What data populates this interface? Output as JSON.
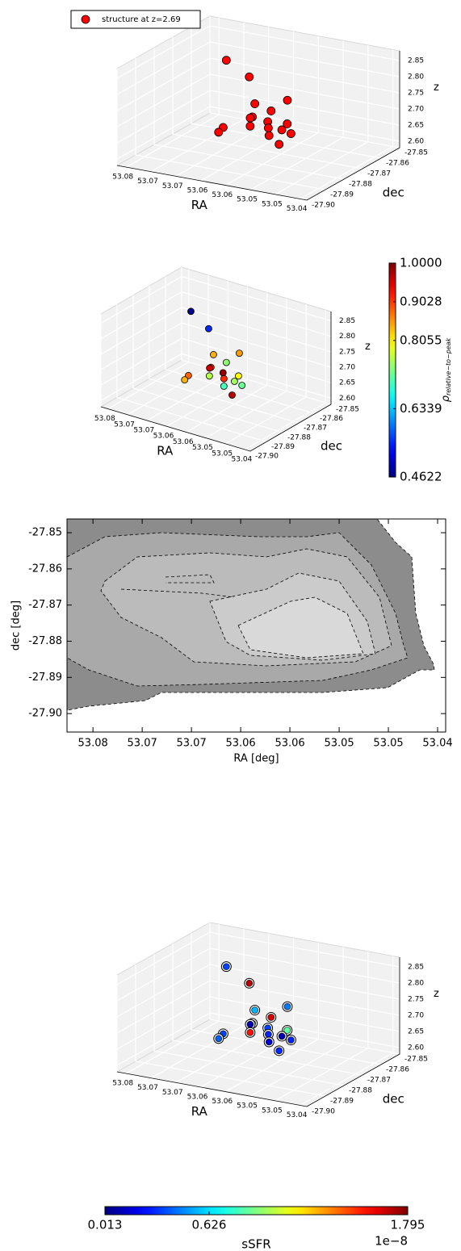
{
  "chart_data": [
    {
      "type": "scatter3d",
      "legend": "structure at z=2.69",
      "color": "#ff0000",
      "xlabel": "RA",
      "ylabel": "dec",
      "zlabel": "z",
      "x": [
        53.0685,
        53.0626,
        53.0626,
        53.0615,
        53.0628,
        53.0558,
        53.0624,
        53.0692,
        53.0698,
        53.059,
        53.0581,
        53.0542,
        53.0592,
        53.0574,
        53.0558,
        53.0546,
        53.056
      ],
      "y": [
        -27.874,
        -27.876,
        -27.873,
        -27.877,
        -27.875,
        -27.872,
        -27.876,
        -27.874,
        -27.875,
        -27.873,
        -27.877,
        -27.876,
        -27.874,
        -27.878,
        -27.875,
        -27.873,
        -27.876
      ],
      "z": [
        2.856,
        2.826,
        2.733,
        2.708,
        2.695,
        2.758,
        2.674,
        2.646,
        2.633,
        2.72,
        2.702,
        2.702,
        2.67,
        2.664,
        2.676,
        2.661,
        2.634
      ],
      "xlim": [
        53.082,
        53.04
      ],
      "ylim": [
        -27.9,
        -27.85
      ],
      "zlim": [
        2.58,
        2.88
      ],
      "xticks": [
        53.08,
        {
          "value": 53.0745,
          "label": "53.07"
        },
        {
          "value": 53.069,
          "label": "53.07"
        },
        {
          "value": 53.0635,
          "label": "53.06"
        },
        {
          "value": 53.058,
          "label": "53.06"
        },
        {
          "value": 53.0525,
          "label": "53.05"
        },
        {
          "value": 53.047,
          "label": "53.05"
        },
        {
          "value": 53.0415,
          "label": "53.04"
        }
      ],
      "yticks": [
        -27.85,
        -27.86,
        -27.87,
        -27.88,
        -27.89,
        {
          "value": -27.9,
          "label": "-27.90"
        }
      ],
      "zticks": [
        {
          "value": 2.6,
          "label": "2.60"
        },
        2.65,
        {
          "value": 2.7,
          "label": "2.70"
        },
        2.75,
        {
          "value": 2.8,
          "label": "2.80"
        },
        2.85
      ]
    },
    {
      "type": "scatter3d",
      "xlabel": "RA",
      "ylabel": "dec",
      "zlabel": "z",
      "x": [
        53.0685,
        53.0626,
        53.0626,
        53.0615,
        53.0628,
        53.0558,
        53.0624,
        53.0692,
        53.0698,
        53.059,
        53.0581,
        53.0542,
        53.0592,
        53.0574,
        53.0558,
        53.0546,
        53.056
      ],
      "y": [
        -27.874,
        -27.876,
        -27.873,
        -27.877,
        -27.875,
        -27.872,
        -27.876,
        -27.874,
        -27.875,
        -27.873,
        -27.877,
        -27.876,
        -27.874,
        -27.878,
        -27.875,
        -27.873,
        -27.876
      ],
      "z": [
        2.856,
        2.826,
        2.733,
        2.708,
        2.695,
        2.758,
        2.674,
        2.646,
        2.633,
        2.72,
        2.702,
        2.702,
        2.67,
        2.664,
        2.676,
        2.661,
        2.634
      ],
      "c": [
        0.47,
        0.55,
        0.84,
        0.91,
        0.96,
        0.85,
        0.76,
        0.88,
        0.84,
        0.74,
        0.99,
        0.8,
        0.91,
        0.7,
        0.75,
        0.72,
        0.97
      ],
      "xlim": [
        53.082,
        53.04
      ],
      "ylim": [
        -27.9,
        -27.85
      ],
      "zlim": [
        2.58,
        2.88
      ],
      "xticks": [
        53.08,
        {
          "value": 53.0745,
          "label": "53.07"
        },
        {
          "value": 53.069,
          "label": "53.07"
        },
        {
          "value": 53.0635,
          "label": "53.06"
        },
        {
          "value": 53.058,
          "label": "53.06"
        },
        {
          "value": 53.0525,
          "label": "53.05"
        },
        {
          "value": 53.047,
          "label": "53.05"
        },
        {
          "value": 53.0415,
          "label": "53.04"
        }
      ],
      "yticks": [
        -27.85,
        -27.86,
        -27.87,
        -27.88,
        -27.89,
        {
          "value": -27.9,
          "label": "-27.90"
        }
      ],
      "zticks": [
        {
          "value": 2.6,
          "label": "2.60"
        },
        2.65,
        {
          "value": 2.7,
          "label": "2.70"
        },
        2.75,
        {
          "value": 2.8,
          "label": "2.80"
        },
        2.85
      ],
      "colorbar": {
        "orientation": "vertical",
        "cmap": "jet",
        "symbol": "ρ",
        "subscript": "relative−to−peak",
        "lim": [
          0.4622,
          1
        ],
        "ticks": [
          0.4622,
          0.6339,
          0.8055,
          0.9028,
          {
            "value": 1,
            "label": "1.0000"
          }
        ]
      }
    },
    {
      "type": "contour",
      "xlabel": "RA [deg]",
      "ylabel": "dec [deg]",
      "xlim": [
        53.0829,
        53.0406
      ],
      "ylim": [
        -27.9051,
        -27.8462
      ],
      "xticks": [
        53.08,
        {
          "value": 53.0745,
          "label": "53.07"
        },
        {
          "value": 53.069,
          "label": "53.07"
        },
        {
          "value": 53.0635,
          "label": "53.06"
        },
        {
          "value": 53.058,
          "label": "53.06"
        },
        {
          "value": 53.0525,
          "label": "53.05"
        },
        {
          "value": 53.047,
          "label": "53.05"
        },
        {
          "value": 53.0415,
          "label": "53.04"
        }
      ],
      "yticks": [
        -27.85,
        -27.86,
        -27.87,
        -27.88,
        -27.89,
        {
          "value": -27.9,
          "label": "-27.90"
        }
      ]
    },
    {
      "type": "scatter3d",
      "ringed": true,
      "xlabel": "RA",
      "ylabel": "dec",
      "zlabel": "z",
      "x": [
        53.0685,
        53.0626,
        53.0626,
        53.0615,
        53.0628,
        53.0558,
        53.0624,
        53.0692,
        53.0698,
        53.059,
        53.0581,
        53.0542,
        53.0592,
        53.0574,
        53.0558,
        53.0546,
        53.056
      ],
      "y": [
        -27.874,
        -27.876,
        -27.873,
        -27.877,
        -27.875,
        -27.872,
        -27.876,
        -27.874,
        -27.875,
        -27.873,
        -27.877,
        -27.876,
        -27.874,
        -27.878,
        -27.875,
        -27.873,
        -27.876
      ],
      "z": [
        2.856,
        2.826,
        2.733,
        2.708,
        2.695,
        2.758,
        2.674,
        2.646,
        2.633,
        2.72,
        2.702,
        2.702,
        2.67,
        2.664,
        2.676,
        2.661,
        2.634
      ],
      "c": [
        0.35,
        1.7,
        0.55,
        0.75,
        0.1,
        0.45,
        1.55,
        0.35,
        0.4,
        1.65,
        0.35,
        0.85,
        0.3,
        0.15,
        0.1,
        0.3,
        0.3
      ],
      "xlim": [
        53.082,
        53.04
      ],
      "ylim": [
        -27.9,
        -27.85
      ],
      "zlim": [
        2.58,
        2.88
      ],
      "xticks": [
        53.08,
        {
          "value": 53.0745,
          "label": "53.07"
        },
        {
          "value": 53.069,
          "label": "53.07"
        },
        {
          "value": 53.0635,
          "label": "53.06"
        },
        {
          "value": 53.058,
          "label": "53.06"
        },
        {
          "value": 53.0525,
          "label": "53.05"
        },
        {
          "value": 53.047,
          "label": "53.05"
        },
        {
          "value": 53.0415,
          "label": "53.04"
        }
      ],
      "yticks": [
        -27.85,
        -27.86,
        -27.87,
        -27.88,
        -27.89,
        {
          "value": -27.9,
          "label": "-27.90"
        }
      ],
      "zticks": [
        {
          "value": 2.6,
          "label": "2.60"
        },
        2.65,
        {
          "value": 2.7,
          "label": "2.70"
        },
        2.75,
        {
          "value": 2.8,
          "label": "2.80"
        },
        2.85
      ],
      "colorbar": {
        "orientation": "horizontal",
        "cmap": "jet",
        "label": "sSFR",
        "offset": "1e−8",
        "lim": [
          0.013,
          1.795
        ],
        "ticks": [
          0.013,
          0.626,
          1.795
        ]
      }
    }
  ]
}
